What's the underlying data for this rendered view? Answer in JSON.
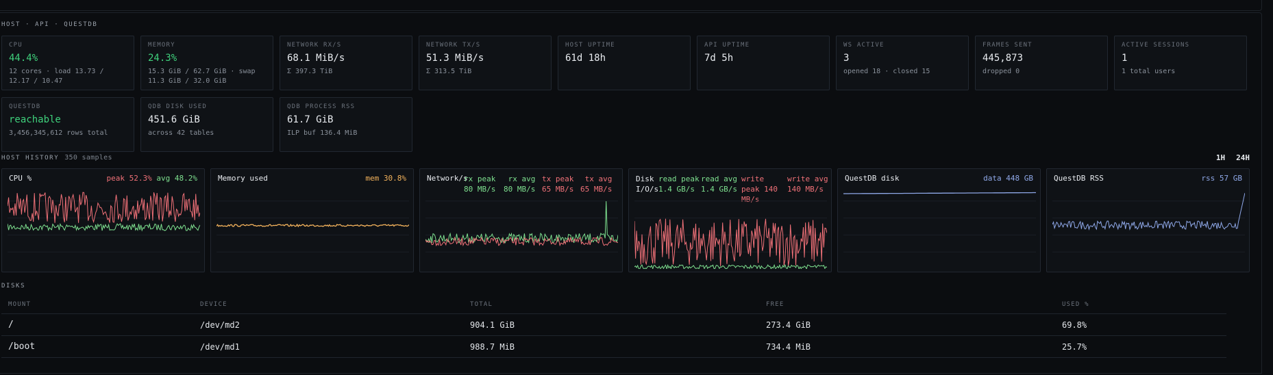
{
  "host_section": {
    "title": "HOST · API · QUESTDB"
  },
  "cards": [
    {
      "label": "CPU",
      "value": "44.4%",
      "sub": "12 cores · load 13.73 / 12.17 / 10.47"
    },
    {
      "label": "MEMORY",
      "value": "24.3%",
      "sub": "15.3 GiB / 62.7 GiB · swap 11.3 GiB / 32.0 GiB"
    },
    {
      "label": "NETWORK RX/S",
      "value": "68.1 MiB/s",
      "sub": "Σ 397.3 TiB"
    },
    {
      "label": "NETWORK TX/S",
      "value": "51.3 MiB/s",
      "sub": "Σ 313.5 TiB"
    },
    {
      "label": "HOST UPTIME",
      "value": "61d 18h",
      "sub": ""
    },
    {
      "label": "API UPTIME",
      "value": "7d 5h",
      "sub": ""
    },
    {
      "label": "WS ACTIVE",
      "value": "3",
      "sub": "opened 18 · closed 15"
    },
    {
      "label": "FRAMES SENT",
      "value": "445,873",
      "sub": "dropped 0"
    },
    {
      "label": "ACTIVE SESSIONS",
      "value": "1",
      "sub": "1 total users"
    },
    {
      "label": "QUESTDB",
      "value": "reachable",
      "sub": "3,456,345,612 rows total"
    },
    {
      "label": "QDB DISK USED",
      "value": "451.6 GiB",
      "sub": "across 42 tables"
    },
    {
      "label": "QDB PROCESS RSS",
      "value": "61.7 GiB",
      "sub": "ILP buf 136.4 MiB"
    }
  ],
  "history": {
    "title": "HOST HISTORY",
    "samples": "350 samples",
    "ranges": [
      "1H",
      "24H"
    ]
  },
  "charts": {
    "cpu": {
      "title": "CPU %",
      "legend_peak": "peak 52.3%",
      "legend_avg": "avg 48.2%"
    },
    "memory": {
      "title": "Memory used",
      "legend": "mem 30.8%"
    },
    "network": {
      "title": "Network/s",
      "rx_peak": [
        "rx peak",
        "80 MB/s"
      ],
      "rx_avg": [
        "rx avg",
        "80 MB/s"
      ],
      "tx_peak": [
        "tx peak",
        "65 MB/s"
      ],
      "tx_avg": [
        "tx avg",
        "65 MB/s"
      ]
    },
    "disk": {
      "title": "Disk I/O/s",
      "read_peak": [
        "read peak",
        "1.4 GB/s"
      ],
      "read_avg": [
        "read avg",
        "1.4 GB/s"
      ],
      "write_peak": [
        "write peak 140",
        "MB/s"
      ],
      "write_avg": [
        "write avg",
        "140 MB/s"
      ]
    },
    "qdb_disk": {
      "title": "QuestDB disk",
      "legend": "data 448 GB"
    },
    "qdb_rss": {
      "title": "QuestDB RSS",
      "legend": "rss 57 GB"
    }
  },
  "disks": {
    "title": "DISKS",
    "headers": [
      "MOUNT",
      "DEVICE",
      "TOTAL",
      "FREE",
      "USED %"
    ],
    "rows": [
      [
        "/",
        "/dev/md2",
        "904.1 GiB",
        "273.4 GiB",
        "69.8%"
      ],
      [
        "/boot",
        "/dev/md1",
        "988.7 MiB",
        "734.4 MiB",
        "25.7%"
      ]
    ]
  },
  "colors": {
    "green": "#3fd17c",
    "red": "#f07178",
    "amber": "#f4b35c",
    "blue": "#8fa8e8",
    "line_green": "#7ee08f"
  }
}
